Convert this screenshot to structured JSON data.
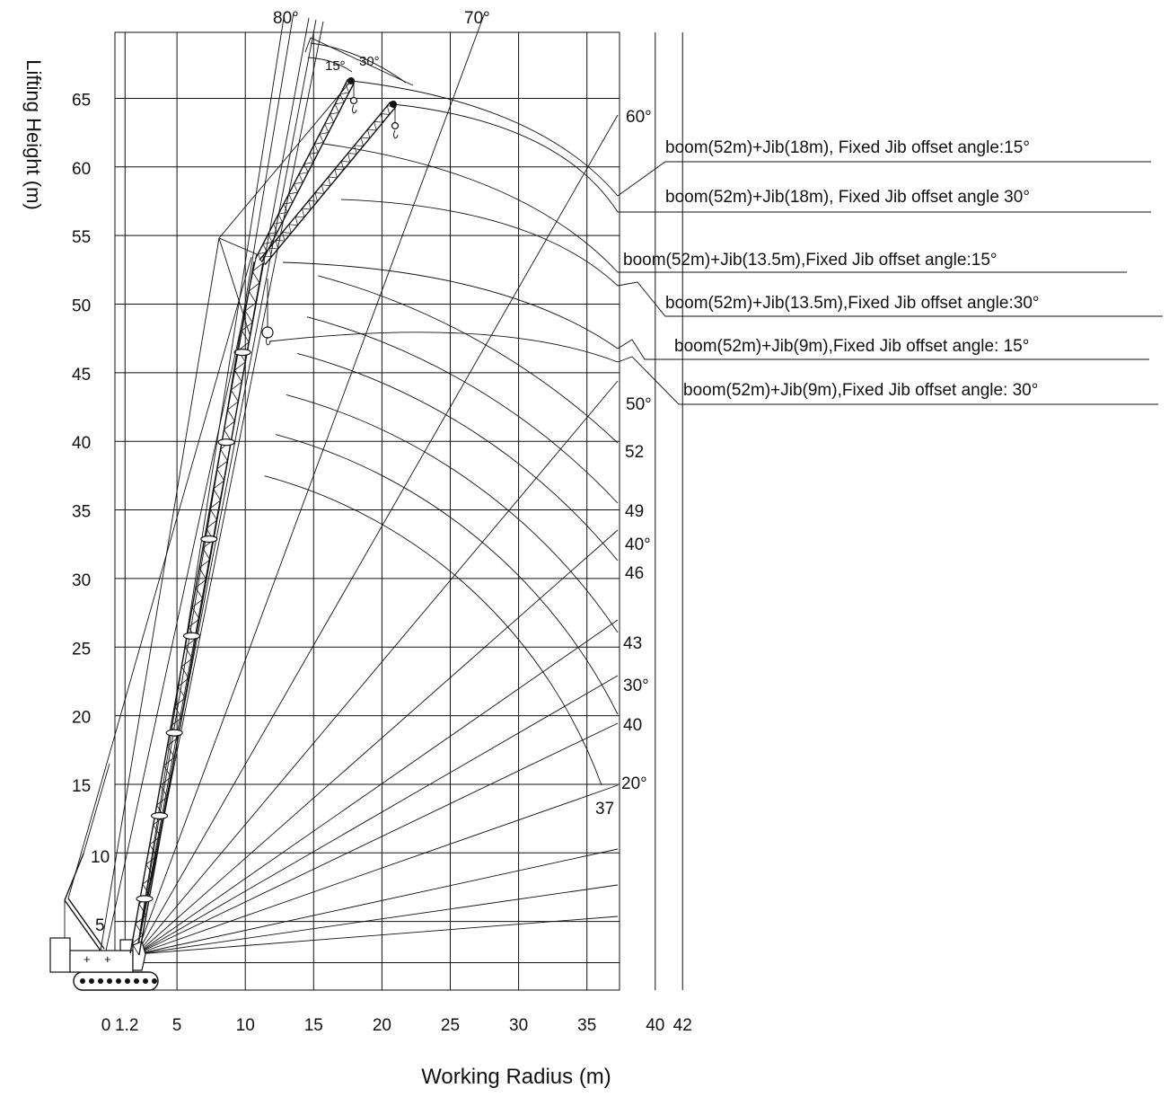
{
  "y_axis": {
    "title": "Lifting Height (m)",
    "ticks": [
      "65",
      "60",
      "55",
      "50",
      "45",
      "40",
      "35",
      "30",
      "25",
      "20",
      "15",
      "10",
      "5"
    ]
  },
  "x_axis": {
    "title": "Working Radius (m)",
    "ticks": [
      "0",
      "1.2",
      "5",
      "10",
      "15",
      "20",
      "25",
      "30",
      "35",
      "40",
      "42"
    ]
  },
  "angle_labels": {
    "top": [
      "80°",
      "70°"
    ],
    "right": [
      "60°",
      "50°",
      "40°",
      "30°",
      "20°"
    ],
    "jib_offset": [
      "15°",
      "30°"
    ]
  },
  "boom_length_labels": [
    "52",
    "49",
    "46",
    "43",
    "40",
    "37"
  ],
  "configurations": [
    "boom(52m)+Jib(18m), Fixed Jib offset angle:15°",
    "boom(52m)+Jib(18m), Fixed Jib offset angle 30°",
    "boom(52m)+Jib(13.5m),Fixed Jib offset angle:15°",
    "boom(52m)+Jib(13.5m),Fixed Jib offset angle:30°",
    "boom(52m)+Jib(9m),Fixed Jib offset angle: 15°",
    "boom(52m)+Jib(9m),Fixed Jib offset angle: 30°"
  ]
}
